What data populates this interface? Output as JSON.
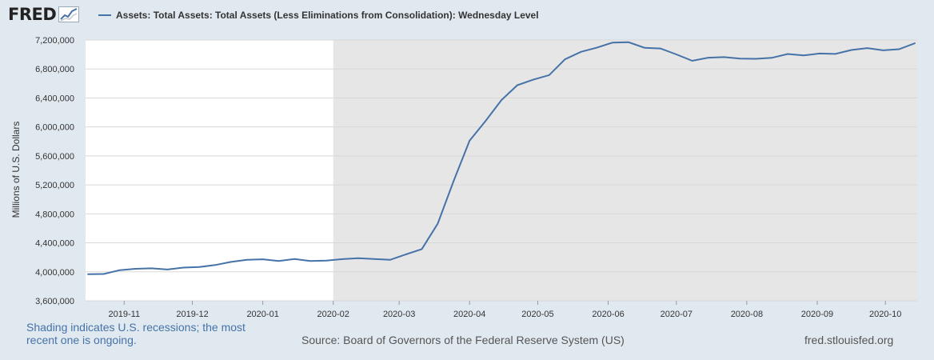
{
  "header": {
    "logo_text": "FRED",
    "legend_label": "Assets: Total Assets: Total Assets (Less Eliminations from Consolidation): Wednesday Level"
  },
  "footer": {
    "shading_note": "Shading indicates U.S. recessions; the most recent one is ongoing.",
    "source": "Source: Board of Governors of the Federal Reserve System (US)",
    "site": "fred.stlouisfed.org"
  },
  "colors": {
    "line": "#4572a7",
    "recession": "#e6e6e6",
    "plot_bg": "#ffffff",
    "page_bg": "#e1e9f0"
  },
  "chart_data": {
    "type": "line",
    "title": "",
    "xlabel": "",
    "ylabel": "Millions of U.S. Dollars",
    "ylim": [
      3600000,
      7200000
    ],
    "xlim": [
      "2019-10-15",
      "2020-10-15"
    ],
    "grid": true,
    "y_ticks": [
      "3,600,000",
      "4,000,000",
      "4,400,000",
      "4,800,000",
      "5,200,000",
      "5,600,000",
      "6,000,000",
      "6,400,000",
      "6,800,000",
      "7,200,000"
    ],
    "x_ticks": [
      "2019-11",
      "2019-12",
      "2020-01",
      "2020-02",
      "2020-03",
      "2020-04",
      "2020-05",
      "2020-06",
      "2020-07",
      "2020-08",
      "2020-09",
      "2020-10"
    ],
    "recession_start": "2020-02-01",
    "series": [
      {
        "name": "Assets: Total Assets: Total Assets (Less Eliminations from Consolidation): Wednesday Level",
        "x": [
          "2019-10-16",
          "2019-10-23",
          "2019-10-30",
          "2019-11-06",
          "2019-11-13",
          "2019-11-20",
          "2019-11-27",
          "2019-12-04",
          "2019-12-11",
          "2019-12-18",
          "2019-12-25",
          "2020-01-01",
          "2020-01-08",
          "2020-01-15",
          "2020-01-22",
          "2020-01-29",
          "2020-02-05",
          "2020-02-12",
          "2020-02-19",
          "2020-02-26",
          "2020-03-04",
          "2020-03-11",
          "2020-03-18",
          "2020-03-25",
          "2020-04-01",
          "2020-04-08",
          "2020-04-15",
          "2020-04-22",
          "2020-04-29",
          "2020-05-06",
          "2020-05-13",
          "2020-05-20",
          "2020-05-27",
          "2020-06-03",
          "2020-06-10",
          "2020-06-17",
          "2020-06-24",
          "2020-07-01",
          "2020-07-08",
          "2020-07-15",
          "2020-07-22",
          "2020-07-29",
          "2020-08-05",
          "2020-08-12",
          "2020-08-19",
          "2020-08-26",
          "2020-09-02",
          "2020-09-09",
          "2020-09-16",
          "2020-09-23",
          "2020-09-30",
          "2020-10-07",
          "2020-10-14"
        ],
        "values": [
          3967000,
          3970000,
          4023000,
          4042000,
          4048000,
          4032000,
          4058000,
          4066000,
          4094000,
          4137000,
          4165000,
          4173000,
          4150000,
          4176000,
          4149000,
          4156000,
          4175000,
          4187000,
          4177000,
          4165000,
          4242000,
          4313000,
          4666000,
          5254000,
          5810000,
          6080000,
          6370000,
          6576000,
          6652000,
          6715000,
          6934000,
          7037000,
          7094000,
          7165000,
          7169000,
          7093000,
          7083000,
          7001000,
          6913000,
          6956000,
          6964000,
          6944000,
          6940000,
          6954000,
          7007000,
          6987000,
          7013000,
          7008000,
          7062000,
          7089000,
          7057000,
          7073000,
          7156000
        ]
      }
    ]
  }
}
